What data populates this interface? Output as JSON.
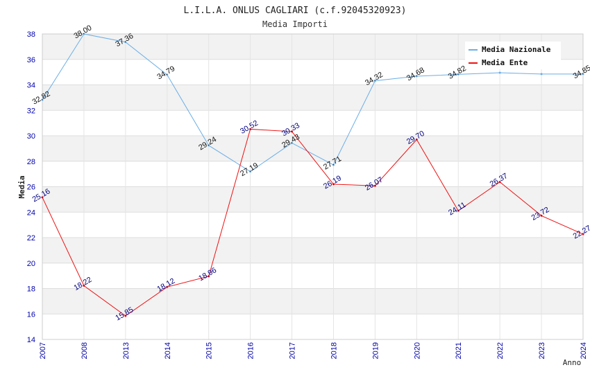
{
  "chart_data": {
    "type": "line",
    "title": "L.I.L.A. ONLUS CAGLIARI (c.f.92045320923)",
    "subtitle": "Media Importi",
    "xlabel": "Anno",
    "ylabel": "Media",
    "ylim": [
      14,
      38
    ],
    "yticks": [
      "14",
      "16",
      "18",
      "20",
      "22",
      "24",
      "26",
      "28",
      "30",
      "32",
      "34",
      "36",
      "38"
    ],
    "categories": [
      "2007",
      "2008",
      "2013",
      "2014",
      "2015",
      "2016",
      "2017",
      "2018",
      "2019",
      "2020",
      "2021",
      "2022",
      "2023",
      "2024"
    ],
    "grid": true,
    "legend_position": "top-right",
    "series": [
      {
        "name": "Media Nazionale",
        "color": "#6aaee6",
        "label_color": "#111111",
        "values": [
          32.82,
          38.0,
          37.36,
          34.79,
          29.24,
          27.19,
          29.43,
          27.71,
          34.32,
          34.68,
          34.82,
          34.95,
          34.85,
          34.85
        ],
        "labels": [
          "32.82",
          "38.00",
          "37.36",
          "34.79",
          "29.24",
          "27.19",
          "29.43",
          "27.71",
          "34.32",
          "34.68",
          "34.82",
          "",
          "",
          "34.85"
        ]
      },
      {
        "name": "Media Ente",
        "color": "#ee1111",
        "label_color": "#000080",
        "values": [
          25.16,
          18.22,
          15.85,
          18.12,
          18.96,
          30.52,
          30.33,
          26.19,
          26.07,
          29.7,
          24.11,
          26.37,
          23.72,
          22.27
        ],
        "labels": [
          "25.16",
          "18.22",
          "15.85",
          "18.12",
          "18.96",
          "30.52",
          "30.33",
          "26.19",
          "26.07",
          "29.70",
          "24.11",
          "26.37",
          "23.72",
          "22.27"
        ]
      }
    ]
  }
}
